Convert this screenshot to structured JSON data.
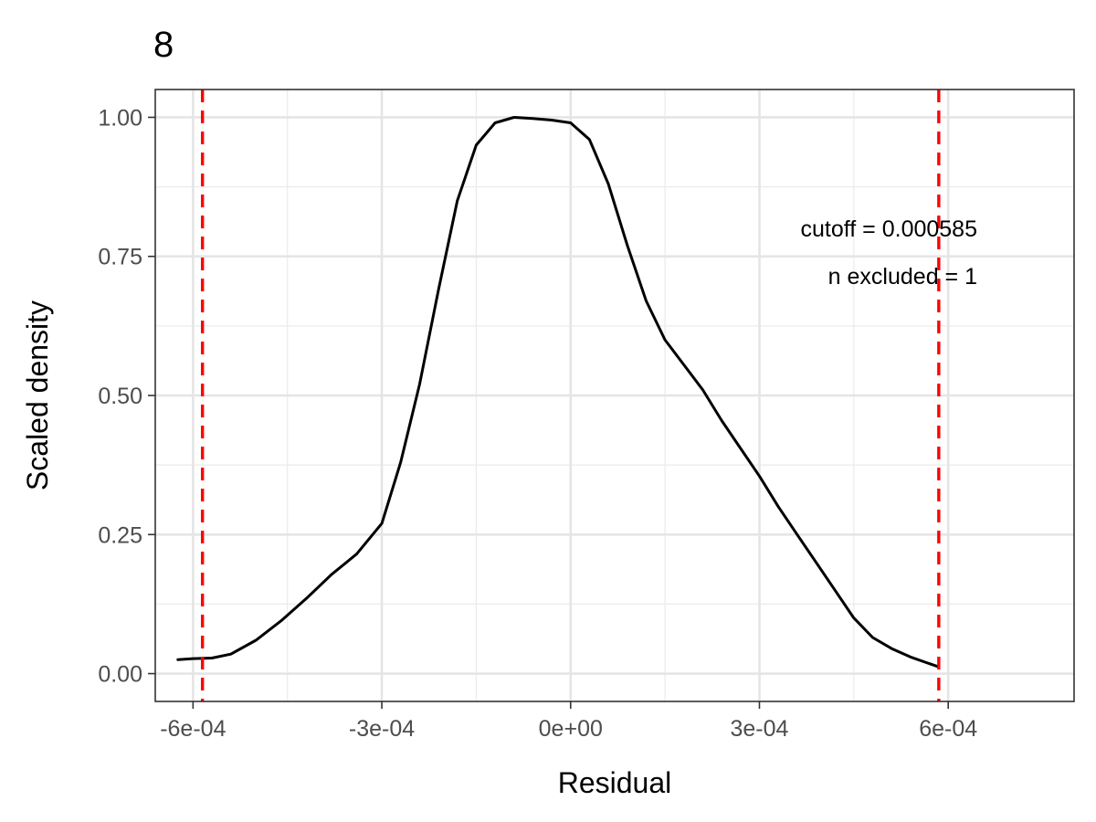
{
  "chart_data": {
    "type": "line",
    "title": "8",
    "xlabel": "Residual",
    "ylabel": "Scaled density",
    "xlim": [
      -0.00066,
      0.0008
    ],
    "ylim": [
      -0.05,
      1.05
    ],
    "x_ticks": [
      -0.0006,
      -0.0003,
      0.0,
      0.0003,
      0.0006
    ],
    "x_tick_labels": [
      "-6e-04",
      "-3e-04",
      "0e+00",
      "3e-04",
      "6e-04"
    ],
    "x_minor": [
      -0.00045,
      -0.00015,
      0.00015,
      0.00045
    ],
    "y_ticks": [
      0.0,
      0.25,
      0.5,
      0.75,
      1.0
    ],
    "y_tick_labels": [
      "0.00",
      "0.25",
      "0.50",
      "0.75",
      "1.00"
    ],
    "y_minor": [
      0.125,
      0.375,
      0.625,
      0.875
    ],
    "grid": true,
    "series": [
      {
        "color": "#000000",
        "x": [
          -0.000624,
          -0.0006,
          -0.00057,
          -0.00054,
          -0.0005,
          -0.00046,
          -0.00042,
          -0.00038,
          -0.00034,
          -0.0003,
          -0.00027,
          -0.00024,
          -0.00021,
          -0.00018,
          -0.00015,
          -0.00012,
          -9e-05,
          -6e-05,
          -3e-05,
          0.0,
          3e-05,
          6e-05,
          9e-05,
          0.00012,
          0.00015,
          0.00018,
          0.00021,
          0.00024,
          0.00027,
          0.0003,
          0.00033,
          0.00036,
          0.00039,
          0.00042,
          0.00045,
          0.00048,
          0.00051,
          0.00054,
          0.00057,
          0.000585
        ],
        "y": [
          0.025,
          0.027,
          0.028,
          0.035,
          0.06,
          0.095,
          0.135,
          0.178,
          0.215,
          0.27,
          0.38,
          0.52,
          0.69,
          0.85,
          0.95,
          0.99,
          1.0,
          0.998,
          0.995,
          0.99,
          0.96,
          0.88,
          0.77,
          0.67,
          0.6,
          0.555,
          0.51,
          0.455,
          0.405,
          0.355,
          0.3,
          0.25,
          0.2,
          0.15,
          0.1,
          0.065,
          0.045,
          0.03,
          0.018,
          0.012
        ]
      }
    ],
    "cutoff_lines": {
      "values": [
        -0.000585,
        0.000585
      ],
      "color": "#ff0000",
      "style": "dashed"
    },
    "annotations": [
      "cutoff = 0.000585",
      "n excluded = 1"
    ]
  }
}
